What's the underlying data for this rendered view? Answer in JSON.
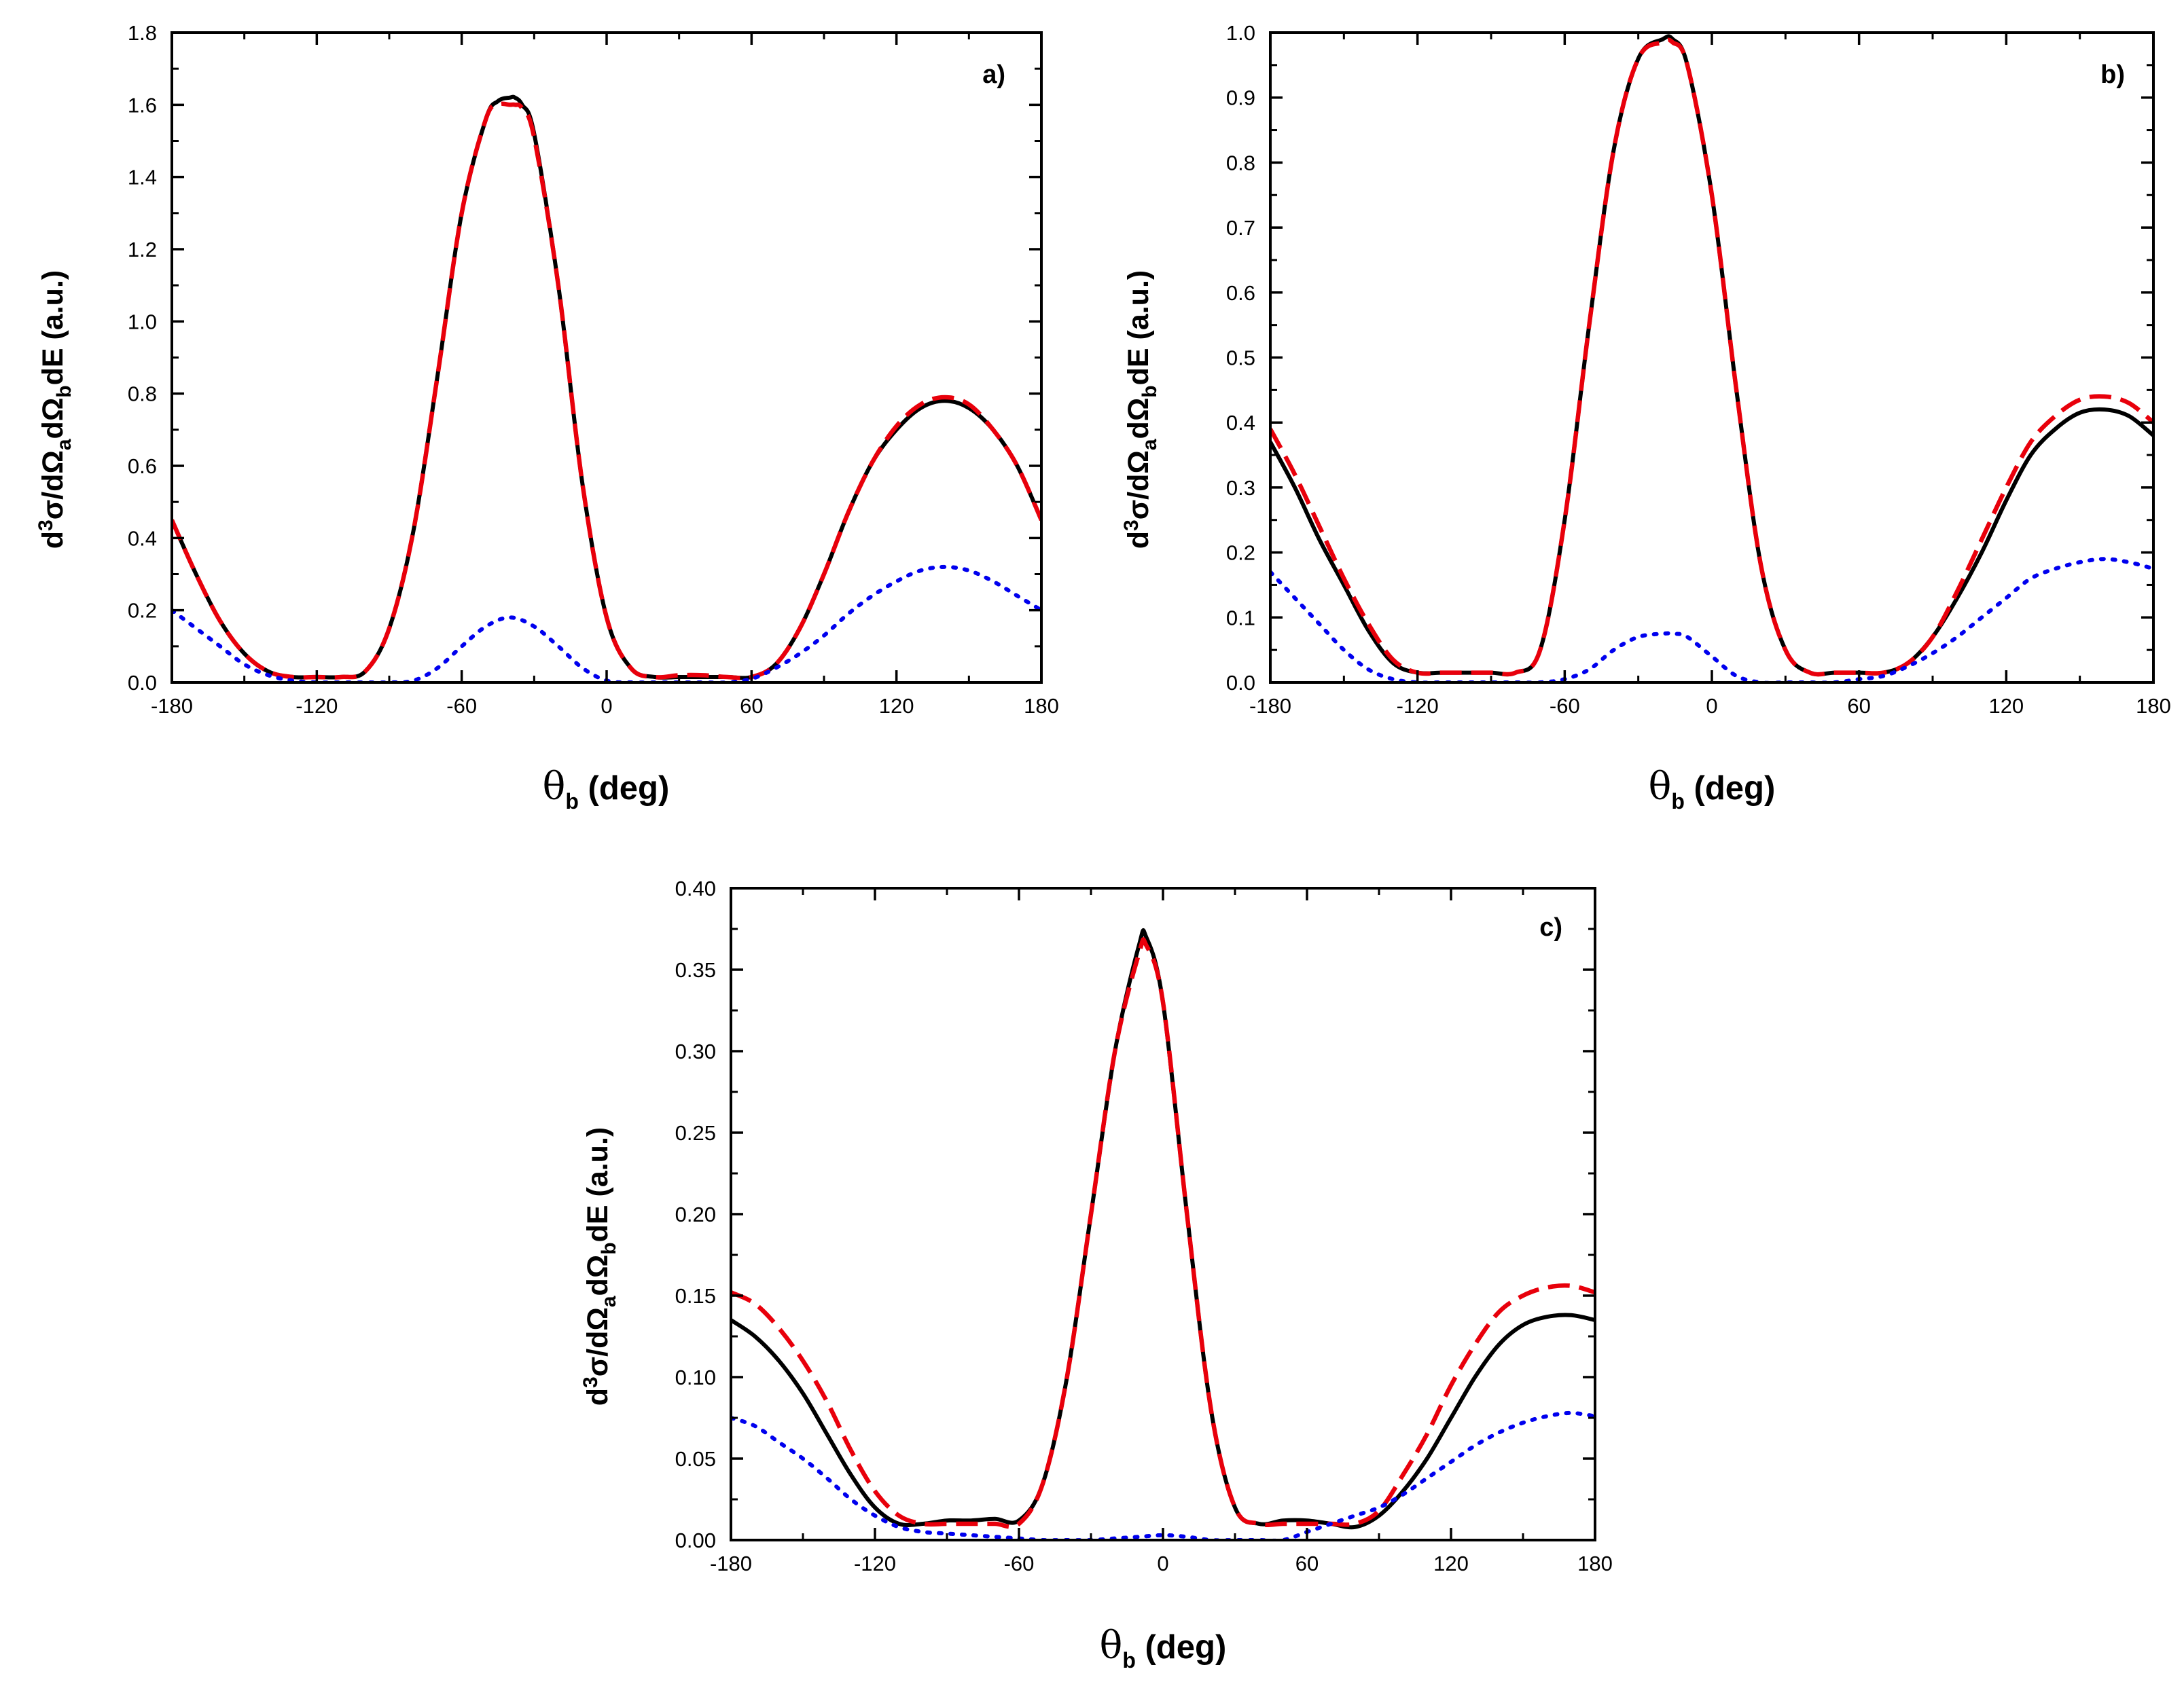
{
  "chart_data": [
    {
      "type": "line",
      "panel_label": "a)",
      "xlabel": {
        "main": "θ",
        "sub": "b",
        "rest": " (deg)"
      },
      "ylabel": {
        "p1": "d",
        "sup": "3",
        "p2": "σ/dΩ",
        "sub1": "a",
        "p3": "dΩ",
        "sub2": "b",
        "p4": "dE (a.u.)"
      },
      "xlim": [
        -180,
        180
      ],
      "ylim": [
        0,
        1.8
      ],
      "xticks": [
        -180,
        -120,
        -60,
        0,
        60,
        120,
        180
      ],
      "xtick_labels": [
        "-180",
        "-120",
        "-60",
        "0",
        "60",
        "120",
        "180"
      ],
      "yticks": [
        0,
        0.2,
        0.4,
        0.6,
        0.8,
        1.0,
        1.2,
        1.4,
        1.6,
        1.8
      ],
      "ytick_labels": [
        "0.0",
        "0.2",
        "0.4",
        "0.6",
        "0.8",
        "1.0",
        "1.2",
        "1.4",
        "1.6",
        "1.8"
      ],
      "series": [
        {
          "name": "solid",
          "color": "#000000",
          "style": "solid",
          "x": [
            -180,
            -170,
            -160,
            -150,
            -140,
            -130,
            -120,
            -110,
            -100,
            -90,
            -80,
            -70,
            -60,
            -50,
            -45,
            -40,
            -38,
            -35,
            -30,
            -20,
            -10,
            0,
            10,
            20,
            30,
            40,
            50,
            60,
            70,
            80,
            90,
            100,
            110,
            120,
            130,
            140,
            150,
            160,
            170,
            180
          ],
          "y": [
            0.45,
            0.3,
            0.17,
            0.08,
            0.03,
            0.015,
            0.015,
            0.015,
            0.03,
            0.15,
            0.42,
            0.85,
            1.3,
            1.56,
            1.61,
            1.62,
            1.62,
            1.6,
            1.52,
            1.1,
            0.55,
            0.18,
            0.04,
            0.015,
            0.015,
            0.015,
            0.015,
            0.015,
            0.05,
            0.15,
            0.3,
            0.47,
            0.61,
            0.7,
            0.76,
            0.78,
            0.76,
            0.7,
            0.6,
            0.45
          ]
        },
        {
          "name": "dashed",
          "color": "#e8000b",
          "style": "dashed",
          "x": [
            -180,
            -170,
            -160,
            -150,
            -140,
            -130,
            -120,
            -110,
            -100,
            -90,
            -80,
            -70,
            -60,
            -50,
            -45,
            -40,
            -38,
            -35,
            -30,
            -20,
            -10,
            0,
            10,
            20,
            30,
            40,
            50,
            60,
            70,
            80,
            90,
            100,
            110,
            120,
            130,
            140,
            150,
            160,
            170,
            180
          ],
          "y": [
            0.45,
            0.3,
            0.17,
            0.08,
            0.03,
            0.015,
            0.015,
            0.015,
            0.03,
            0.15,
            0.42,
            0.85,
            1.3,
            1.56,
            1.6,
            1.6,
            1.6,
            1.59,
            1.51,
            1.1,
            0.55,
            0.18,
            0.04,
            0.015,
            0.02,
            0.02,
            0.015,
            0.015,
            0.05,
            0.15,
            0.3,
            0.47,
            0.61,
            0.71,
            0.77,
            0.79,
            0.77,
            0.7,
            0.6,
            0.45
          ]
        },
        {
          "name": "dotted",
          "color": "#0000ee",
          "style": "dotted",
          "x": [
            -180,
            -170,
            -160,
            -150,
            -140,
            -130,
            -120,
            -110,
            -100,
            -90,
            -80,
            -70,
            -60,
            -50,
            -40,
            -30,
            -20,
            -10,
            0,
            10,
            20,
            30,
            40,
            50,
            60,
            70,
            80,
            90,
            100,
            110,
            120,
            130,
            140,
            150,
            160,
            170,
            180
          ],
          "y": [
            0.2,
            0.15,
            0.1,
            0.05,
            0.02,
            0.005,
            0.0,
            0.0,
            0.0,
            0.0,
            0.005,
            0.04,
            0.1,
            0.155,
            0.18,
            0.155,
            0.1,
            0.04,
            0.005,
            0.0,
            0.0,
            0.0,
            0.0,
            0.0,
            0.01,
            0.04,
            0.08,
            0.13,
            0.19,
            0.24,
            0.28,
            0.31,
            0.32,
            0.31,
            0.28,
            0.24,
            0.2
          ]
        }
      ]
    },
    {
      "type": "line",
      "panel_label": "b)",
      "xlabel": {
        "main": "θ",
        "sub": "b",
        "rest": " (deg)"
      },
      "ylabel": {
        "p1": "d",
        "sup": "3",
        "p2": "σ/dΩ",
        "sub1": "a",
        "p3": "dΩ",
        "sub2": "b",
        "p4": "dE (a.u.)"
      },
      "xlim": [
        -180,
        180
      ],
      "ylim": [
        0,
        1.0
      ],
      "xticks": [
        -180,
        -120,
        -60,
        0,
        60,
        120,
        180
      ],
      "xtick_labels": [
        "-180",
        "-120",
        "-60",
        "0",
        "60",
        "120",
        "180"
      ],
      "yticks": [
        0,
        0.1,
        0.2,
        0.3,
        0.4,
        0.5,
        0.6,
        0.7,
        0.8,
        0.9,
        1.0
      ],
      "ytick_labels": [
        "0.0",
        "0.1",
        "0.2",
        "0.3",
        "0.4",
        "0.5",
        "0.6",
        "0.7",
        "0.8",
        "0.9",
        "1.0"
      ],
      "series": [
        {
          "name": "solid",
          "color": "#000000",
          "style": "solid",
          "x": [
            -180,
            -170,
            -160,
            -150,
            -140,
            -130,
            -120,
            -110,
            -100,
            -90,
            -80,
            -70,
            -60,
            -50,
            -40,
            -30,
            -20,
            -16,
            -10,
            0,
            10,
            20,
            30,
            40,
            50,
            60,
            70,
            80,
            90,
            100,
            110,
            120,
            130,
            140,
            150,
            160,
            170,
            180
          ],
          "y": [
            0.37,
            0.3,
            0.22,
            0.15,
            0.08,
            0.03,
            0.015,
            0.015,
            0.015,
            0.015,
            0.015,
            0.05,
            0.25,
            0.55,
            0.82,
            0.96,
            0.99,
            0.99,
            0.95,
            0.75,
            0.45,
            0.18,
            0.05,
            0.015,
            0.015,
            0.015,
            0.015,
            0.03,
            0.07,
            0.13,
            0.2,
            0.28,
            0.35,
            0.39,
            0.415,
            0.42,
            0.41,
            0.38
          ]
        },
        {
          "name": "dashed",
          "color": "#e8000b",
          "style": "dashed",
          "x": [
            -180,
            -170,
            -160,
            -150,
            -140,
            -130,
            -120,
            -110,
            -100,
            -90,
            -80,
            -70,
            -60,
            -50,
            -40,
            -30,
            -20,
            -16,
            -10,
            0,
            10,
            20,
            30,
            40,
            50,
            60,
            70,
            80,
            90,
            100,
            110,
            120,
            130,
            140,
            150,
            160,
            170,
            180
          ],
          "y": [
            0.39,
            0.32,
            0.24,
            0.16,
            0.09,
            0.035,
            0.015,
            0.015,
            0.015,
            0.015,
            0.015,
            0.05,
            0.25,
            0.55,
            0.82,
            0.96,
            0.985,
            0.985,
            0.95,
            0.75,
            0.45,
            0.18,
            0.05,
            0.015,
            0.015,
            0.015,
            0.015,
            0.03,
            0.07,
            0.14,
            0.22,
            0.3,
            0.37,
            0.41,
            0.435,
            0.44,
            0.43,
            0.4
          ]
        },
        {
          "name": "dotted",
          "color": "#0000ee",
          "style": "dotted",
          "x": [
            -180,
            -170,
            -160,
            -150,
            -140,
            -130,
            -120,
            -110,
            -100,
            -90,
            -80,
            -70,
            -60,
            -50,
            -40,
            -30,
            -20,
            -15,
            -10,
            0,
            10,
            20,
            30,
            40,
            50,
            60,
            70,
            80,
            90,
            100,
            110,
            120,
            130,
            140,
            150,
            160,
            170,
            180
          ],
          "y": [
            0.17,
            0.13,
            0.09,
            0.05,
            0.02,
            0.005,
            0.0,
            0.0,
            0.0,
            0.0,
            0.0,
            0.0,
            0.005,
            0.02,
            0.05,
            0.07,
            0.075,
            0.075,
            0.07,
            0.04,
            0.01,
            0.0,
            0.0,
            0.0,
            0.0,
            0.005,
            0.01,
            0.025,
            0.045,
            0.07,
            0.1,
            0.13,
            0.16,
            0.175,
            0.185,
            0.19,
            0.185,
            0.175
          ]
        }
      ]
    },
    {
      "type": "line",
      "panel_label": "c)",
      "xlabel": {
        "main": "θ",
        "sub": "b",
        "rest": " (deg)"
      },
      "ylabel": {
        "p1": "d",
        "sup": "3",
        "p2": "σ/dΩ",
        "sub1": "a",
        "p3": "dΩ",
        "sub2": "b",
        "p4": "dE (a.u.)"
      },
      "xlim": [
        -180,
        180
      ],
      "ylim": [
        0,
        0.4
      ],
      "xticks": [
        -180,
        -120,
        -60,
        0,
        60,
        120,
        180
      ],
      "xtick_labels": [
        "-180",
        "-120",
        "-60",
        "0",
        "60",
        "120",
        "180"
      ],
      "yticks": [
        0,
        0.05,
        0.1,
        0.15,
        0.2,
        0.25,
        0.3,
        0.35,
        0.4
      ],
      "ytick_labels": [
        "0.00",
        "0.05",
        "0.10",
        "0.15",
        "0.20",
        "0.25",
        "0.30",
        "0.35",
        "0.40"
      ],
      "series": [
        {
          "name": "solid",
          "color": "#000000",
          "style": "solid",
          "x": [
            -180,
            -170,
            -160,
            -150,
            -140,
            -130,
            -120,
            -110,
            -100,
            -90,
            -80,
            -70,
            -60,
            -50,
            -40,
            -30,
            -20,
            -10,
            -7,
            0,
            10,
            20,
            30,
            40,
            50,
            60,
            70,
            80,
            90,
            100,
            110,
            120,
            130,
            140,
            150,
            160,
            170,
            180
          ],
          "y": [
            0.135,
            0.125,
            0.11,
            0.09,
            0.065,
            0.04,
            0.02,
            0.01,
            0.01,
            0.012,
            0.012,
            0.013,
            0.012,
            0.035,
            0.1,
            0.2,
            0.3,
            0.365,
            0.37,
            0.33,
            0.2,
            0.08,
            0.02,
            0.01,
            0.012,
            0.012,
            0.01,
            0.008,
            0.015,
            0.03,
            0.05,
            0.075,
            0.1,
            0.12,
            0.132,
            0.137,
            0.138,
            0.135
          ]
        },
        {
          "name": "dashed",
          "color": "#e8000b",
          "style": "dashed",
          "x": [
            -180,
            -170,
            -160,
            -150,
            -140,
            -130,
            -120,
            -110,
            -100,
            -90,
            -80,
            -70,
            -60,
            -50,
            -40,
            -30,
            -20,
            -10,
            -7,
            0,
            10,
            20,
            30,
            40,
            50,
            60,
            70,
            80,
            90,
            100,
            110,
            120,
            130,
            140,
            150,
            160,
            170,
            180
          ],
          "y": [
            0.152,
            0.145,
            0.13,
            0.11,
            0.085,
            0.055,
            0.03,
            0.015,
            0.01,
            0.01,
            0.01,
            0.01,
            0.01,
            0.035,
            0.1,
            0.2,
            0.3,
            0.36,
            0.365,
            0.33,
            0.2,
            0.08,
            0.02,
            0.01,
            0.01,
            0.01,
            0.01,
            0.01,
            0.018,
            0.04,
            0.065,
            0.095,
            0.12,
            0.14,
            0.15,
            0.155,
            0.156,
            0.152
          ]
        },
        {
          "name": "dotted",
          "color": "#0000ee",
          "style": "dotted",
          "x": [
            -180,
            -170,
            -160,
            -150,
            -140,
            -130,
            -120,
            -110,
            -100,
            -90,
            -80,
            -70,
            -60,
            -50,
            -40,
            -30,
            -20,
            -10,
            0,
            10,
            20,
            30,
            40,
            50,
            60,
            70,
            80,
            90,
            100,
            110,
            120,
            130,
            140,
            150,
            160,
            170,
            180
          ],
          "y": [
            0.075,
            0.07,
            0.06,
            0.05,
            0.038,
            0.025,
            0.015,
            0.008,
            0.005,
            0.004,
            0.003,
            0.002,
            0.001,
            0.0,
            0.0,
            0.0,
            0.001,
            0.002,
            0.003,
            0.002,
            0.0,
            0.0,
            0.0,
            0.0,
            0.005,
            0.01,
            0.015,
            0.02,
            0.028,
            0.038,
            0.048,
            0.058,
            0.066,
            0.072,
            0.076,
            0.078,
            0.076
          ]
        }
      ]
    }
  ]
}
